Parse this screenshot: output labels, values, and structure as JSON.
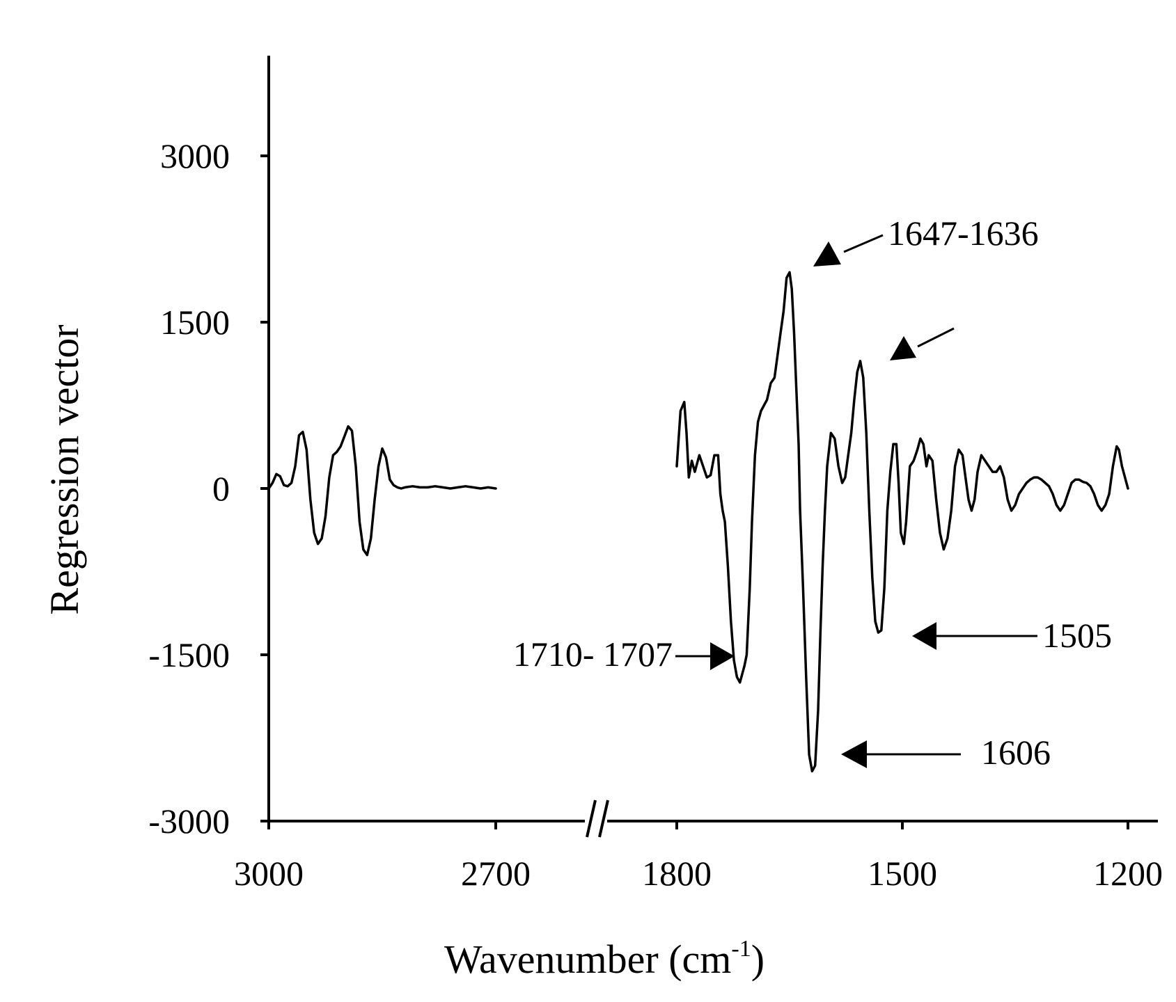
{
  "chart_data": {
    "type": "line",
    "title": "",
    "xlabel": "Wavenumber (cm",
    "xlabel_sup": "-1",
    "xlabel_close": ")",
    "ylabel": "Regression vector",
    "ylim": [
      -3000,
      3000
    ],
    "y_ticks": [
      "3000",
      "1500",
      "0",
      "-1500",
      "-3000"
    ],
    "x_segments": [
      {
        "range": [
          3000,
          2700
        ],
        "ticks": [
          "3000",
          "2700"
        ]
      },
      {
        "range": [
          1800,
          1200
        ],
        "ticks": [
          "1800",
          "1500",
          "1200"
        ]
      }
    ],
    "axis_break": true,
    "grid": false,
    "series": [
      {
        "segment": 0,
        "x": [
          3000,
          2995,
          2990,
          2985,
          2980,
          2975,
          2970,
          2965,
          2960,
          2955,
          2950,
          2945,
          2940,
          2935,
          2930,
          2925,
          2920,
          2915,
          2910,
          2905,
          2900,
          2895,
          2890,
          2885,
          2880,
          2875,
          2870,
          2865,
          2860,
          2855,
          2850,
          2845,
          2840,
          2835,
          2830,
          2825,
          2820,
          2810,
          2800,
          2790,
          2780,
          2770,
          2760,
          2750,
          2740,
          2730,
          2720,
          2710,
          2700
        ],
        "y": [
          0,
          50,
          130,
          110,
          30,
          20,
          50,
          200,
          480,
          510,
          350,
          -100,
          -400,
          -500,
          -450,
          -250,
          100,
          300,
          330,
          380,
          470,
          560,
          520,
          200,
          -300,
          -550,
          -600,
          -450,
          -100,
          200,
          360,
          280,
          80,
          30,
          10,
          0,
          10,
          20,
          10,
          10,
          20,
          10,
          0,
          10,
          20,
          10,
          0,
          10,
          0
        ]
      },
      {
        "segment": 1,
        "x": [
          1800,
          1795,
          1790,
          1787,
          1784,
          1780,
          1776,
          1770,
          1765,
          1760,
          1755,
          1750,
          1745,
          1742,
          1739,
          1736,
          1732,
          1728,
          1724,
          1720,
          1716,
          1712,
          1710,
          1707,
          1703,
          1700,
          1696,
          1692,
          1688,
          1684,
          1680,
          1675,
          1670,
          1666,
          1662,
          1658,
          1654,
          1650,
          1647,
          1644,
          1641,
          1638,
          1636,
          1632,
          1628,
          1624,
          1620,
          1616,
          1612,
          1609,
          1606,
          1603,
          1600,
          1595,
          1590,
          1585,
          1580,
          1576,
          1572,
          1568,
          1564,
          1560,
          1556,
          1552,
          1548,
          1544,
          1540,
          1536,
          1532,
          1528,
          1524,
          1520,
          1516,
          1512,
          1508,
          1505,
          1502,
          1498,
          1495,
          1490,
          1485,
          1480,
          1476,
          1472,
          1468,
          1465,
          1460,
          1455,
          1450,
          1445,
          1440,
          1435,
          1430,
          1425,
          1420,
          1416,
          1412,
          1408,
          1404,
          1400,
          1395,
          1390,
          1385,
          1380,
          1375,
          1370,
          1365,
          1360,
          1355,
          1350,
          1345,
          1340,
          1335,
          1330,
          1325,
          1320,
          1315,
          1310,
          1305,
          1300,
          1295,
          1290,
          1285,
          1280,
          1275,
          1270,
          1265,
          1260,
          1255,
          1250,
          1245,
          1240,
          1235,
          1230,
          1225,
          1220,
          1215,
          1212,
          1208,
          1204,
          1200
        ],
        "y": [
          200,
          700,
          780,
          500,
          100,
          250,
          150,
          300,
          200,
          100,
          120,
          300,
          300,
          -50,
          -200,
          -300,
          -700,
          -1200,
          -1550,
          -1700,
          -1750,
          -1650,
          -1600,
          -1500,
          -900,
          -300,
          300,
          600,
          700,
          750,
          800,
          950,
          1000,
          1200,
          1400,
          1600,
          1900,
          1950,
          1800,
          1400,
          900,
          400,
          -200,
          -900,
          -1700,
          -2400,
          -2550,
          -2500,
          -2000,
          -1300,
          -700,
          -200,
          200,
          500,
          450,
          200,
          50,
          100,
          300,
          500,
          800,
          1050,
          1150,
          1000,
          500,
          -200,
          -800,
          -1200,
          -1300,
          -1280,
          -900,
          -200,
          150,
          400,
          400,
          50,
          -400,
          -500,
          -300,
          200,
          250,
          350,
          450,
          400,
          200,
          300,
          250,
          -100,
          -400,
          -550,
          -450,
          -200,
          200,
          350,
          300,
          100,
          -100,
          -200,
          -100,
          150,
          300,
          250,
          200,
          150,
          150,
          200,
          100,
          -100,
          -200,
          -150,
          -50,
          0,
          50,
          80,
          100,
          100,
          80,
          50,
          20,
          -50,
          -150,
          -200,
          -150,
          -50,
          50,
          80,
          80,
          60,
          50,
          20,
          -50,
          -150,
          -200,
          -150,
          -50,
          200,
          380,
          350,
          200,
          100,
          0
        ]
      }
    ],
    "annotations": [
      {
        "label": "1647-1636"
      },
      {
        "label": ""
      },
      {
        "label": "1710- 1707"
      },
      {
        "label": "1505"
      },
      {
        "label": "1606"
      }
    ]
  }
}
